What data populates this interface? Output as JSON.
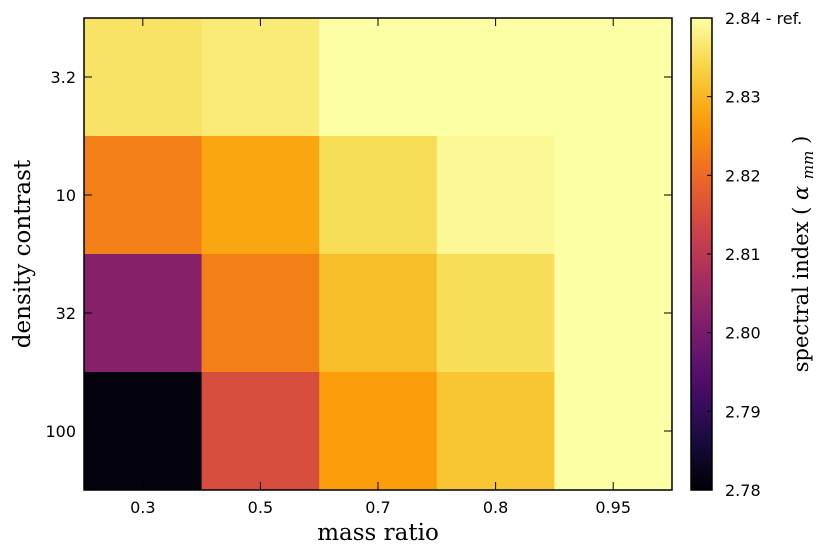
{
  "chart_data": {
    "type": "heatmap",
    "xlabel": "mass ratio",
    "ylabel": "density contrast",
    "x_categories": [
      "0.3",
      "0.5",
      "0.7",
      "0.8",
      "0.95"
    ],
    "y_categories": [
      "3.2",
      "10",
      "32",
      "100"
    ],
    "values": [
      [
        2.836,
        2.837,
        2.84,
        2.84,
        2.84
      ],
      [
        2.823,
        2.828,
        2.835,
        2.839,
        2.84
      ],
      [
        2.802,
        2.823,
        2.831,
        2.835,
        2.84
      ],
      [
        2.781,
        2.815,
        2.827,
        2.832,
        2.84
      ]
    ],
    "colorscale": "inferno",
    "zlim": [
      2.78,
      2.84
    ],
    "colorbar": {
      "ticks": [
        "2.78",
        "2.79",
        "2.80",
        "2.81",
        "2.82",
        "2.83"
      ],
      "top_tick": "2.84 - ref.",
      "label_text": "spectral index",
      "label_symbol": "α",
      "label_subscript": "mm"
    }
  }
}
